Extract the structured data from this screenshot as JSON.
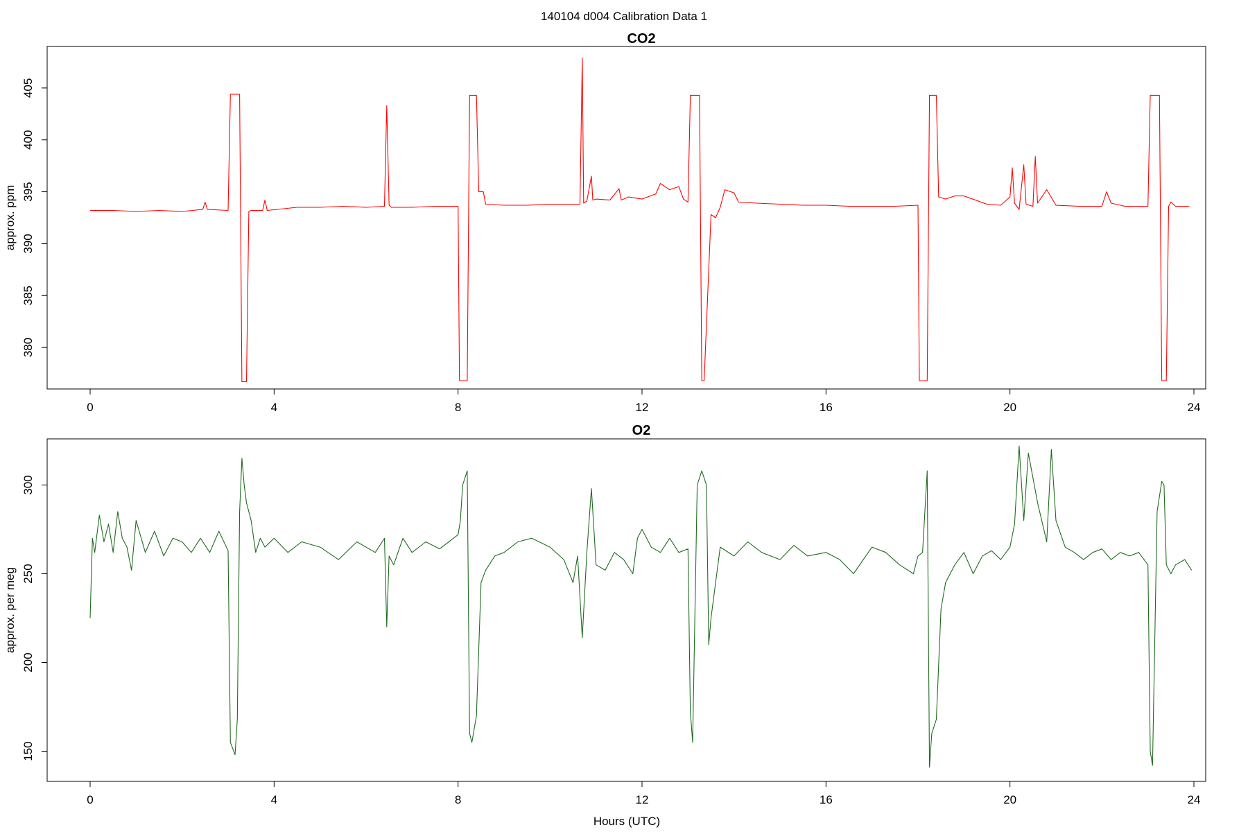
{
  "figure_title": "140104   d004   Calibration Data 1",
  "chart_data": [
    {
      "type": "line",
      "title": "CO2",
      "xlabel": "",
      "ylabel": "approx. ppm",
      "xlim": [
        0,
        24
      ],
      "ylim": [
        376,
        409
      ],
      "xticks": [
        0,
        4,
        8,
        12,
        16,
        20,
        24
      ],
      "yticks": [
        380,
        385,
        390,
        395,
        400,
        405
      ],
      "color": "#ff0000",
      "series": [
        {
          "x": [
            0,
            0.5,
            1.0,
            1.5,
            2.0,
            2.45,
            2.5,
            2.55,
            3.0,
            3.05,
            3.1,
            3.25,
            3.3,
            3.4,
            3.45,
            3.5,
            3.75,
            3.8,
            3.85,
            4.5,
            5.0,
            5.5,
            6.0,
            6.4,
            6.45,
            6.5,
            6.55,
            7.0,
            7.5,
            8.0,
            8.03,
            8.05,
            8.2,
            8.25,
            8.4,
            8.45,
            8.55,
            8.6,
            9.0,
            9.5,
            10.0,
            10.5,
            10.65,
            10.7,
            10.73,
            10.8,
            10.9,
            10.93,
            11.0,
            11.3,
            11.5,
            11.55,
            11.7,
            12.0,
            12.3,
            12.4,
            12.6,
            12.8,
            12.9,
            13.0,
            13.05,
            13.1,
            13.25,
            13.3,
            13.35,
            13.5,
            13.6,
            13.7,
            13.8,
            14.0,
            14.1,
            14.5,
            15.0,
            15.5,
            16.0,
            16.5,
            17.0,
            17.5,
            18.0,
            18.03,
            18.05,
            18.2,
            18.25,
            18.4,
            18.45,
            18.6,
            18.8,
            19.0,
            19.5,
            19.8,
            20.0,
            20.05,
            20.1,
            20.2,
            20.3,
            20.35,
            20.5,
            20.55,
            20.6,
            20.8,
            21.0,
            21.5,
            22.0,
            22.1,
            22.2,
            22.5,
            23.0,
            23.05,
            23.1,
            23.25,
            23.3,
            23.4,
            23.45,
            23.5,
            23.6,
            23.9
          ],
          "y": [
            393.2,
            393.2,
            393.1,
            393.2,
            393.1,
            393.3,
            394.0,
            393.3,
            393.2,
            404.4,
            404.4,
            404.4,
            376.7,
            376.7,
            393.1,
            393.2,
            393.2,
            394.2,
            393.2,
            393.5,
            393.5,
            393.6,
            393.5,
            393.6,
            403.3,
            393.7,
            393.5,
            393.5,
            393.6,
            393.6,
            376.8,
            376.8,
            376.8,
            404.3,
            404.3,
            395.0,
            395.0,
            393.8,
            393.7,
            393.7,
            393.8,
            393.8,
            393.8,
            407.9,
            393.9,
            394.1,
            396.5,
            394.2,
            394.3,
            394.2,
            395.3,
            394.2,
            394.5,
            394.3,
            394.8,
            395.8,
            395.2,
            395.5,
            394.3,
            394.0,
            404.3,
            404.3,
            404.3,
            376.8,
            376.8,
            392.8,
            392.5,
            393.5,
            395.2,
            394.9,
            394.0,
            393.9,
            393.8,
            393.7,
            393.7,
            393.6,
            393.6,
            393.6,
            393.7,
            376.8,
            376.8,
            376.8,
            404.3,
            404.3,
            394.5,
            394.3,
            394.6,
            394.6,
            393.8,
            393.7,
            394.5,
            397.3,
            393.9,
            393.3,
            397.6,
            393.8,
            393.6,
            398.4,
            393.9,
            395.2,
            393.7,
            393.6,
            393.6,
            395.0,
            393.9,
            393.6,
            393.6,
            404.3,
            404.3,
            404.3,
            376.8,
            376.8,
            393.6,
            394.0,
            393.6,
            393.6
          ]
        }
      ]
    },
    {
      "type": "line",
      "title": "O2",
      "xlabel": "Hours (UTC)",
      "ylabel": "approx. per meg",
      "xlim": [
        0,
        24
      ],
      "ylim": [
        133,
        326
      ],
      "xticks": [
        0,
        4,
        8,
        12,
        16,
        20,
        24
      ],
      "yticks": [
        150,
        200,
        250,
        300
      ],
      "color": "#1e6b1e",
      "series": [
        {
          "x": [
            0,
            0.05,
            0.1,
            0.2,
            0.3,
            0.4,
            0.5,
            0.6,
            0.7,
            0.8,
            0.9,
            1.0,
            1.2,
            1.4,
            1.6,
            1.8,
            2.0,
            2.2,
            2.4,
            2.6,
            2.8,
            3.0,
            3.05,
            3.15,
            3.2,
            3.25,
            3.3,
            3.35,
            3.4,
            3.5,
            3.6,
            3.7,
            3.8,
            4.0,
            4.3,
            4.6,
            5.0,
            5.4,
            5.8,
            6.2,
            6.4,
            6.45,
            6.5,
            6.6,
            6.8,
            7.0,
            7.3,
            7.6,
            8.0,
            8.05,
            8.1,
            8.2,
            8.25,
            8.3,
            8.4,
            8.5,
            8.6,
            8.8,
            9.0,
            9.3,
            9.6,
            10.0,
            10.3,
            10.5,
            10.6,
            10.7,
            10.8,
            10.9,
            11.0,
            11.2,
            11.4,
            11.6,
            11.8,
            11.9,
            12.0,
            12.2,
            12.4,
            12.6,
            12.8,
            13.0,
            13.05,
            13.1,
            13.2,
            13.3,
            13.4,
            13.45,
            13.5,
            13.6,
            13.7,
            14.0,
            14.3,
            14.6,
            15.0,
            15.3,
            15.6,
            16.0,
            16.3,
            16.6,
            17.0,
            17.3,
            17.6,
            17.9,
            18.0,
            18.1,
            18.2,
            18.25,
            18.3,
            18.4,
            18.5,
            18.6,
            18.8,
            19.0,
            19.2,
            19.4,
            19.6,
            19.8,
            20.0,
            20.1,
            20.2,
            20.3,
            20.4,
            20.6,
            20.8,
            20.9,
            21.0,
            21.2,
            21.4,
            21.6,
            21.8,
            22.0,
            22.2,
            22.4,
            22.6,
            22.8,
            23.0,
            23.05,
            23.1,
            23.2,
            23.3,
            23.35,
            23.4,
            23.5,
            23.6,
            23.8,
            23.95
          ],
          "y": [
            225,
            270,
            262,
            283,
            268,
            278,
            262,
            285,
            270,
            265,
            252,
            280,
            262,
            274,
            260,
            270,
            268,
            262,
            270,
            262,
            274,
            263,
            155,
            148,
            168,
            285,
            315,
            300,
            290,
            280,
            262,
            270,
            265,
            270,
            262,
            268,
            265,
            258,
            268,
            262,
            270,
            220,
            260,
            255,
            270,
            262,
            268,
            264,
            272,
            280,
            300,
            308,
            160,
            155,
            170,
            245,
            252,
            260,
            262,
            268,
            270,
            265,
            258,
            245,
            260,
            214,
            262,
            298,
            255,
            252,
            262,
            258,
            250,
            270,
            275,
            265,
            262,
            270,
            262,
            264,
            172,
            155,
            300,
            308,
            300,
            210,
            225,
            245,
            265,
            260,
            268,
            262,
            258,
            266,
            260,
            262,
            258,
            250,
            265,
            262,
            255,
            250,
            260,
            262,
            308,
            141,
            160,
            168,
            230,
            245,
            255,
            262,
            250,
            260,
            263,
            258,
            265,
            278,
            322,
            280,
            318,
            290,
            268,
            320,
            280,
            265,
            262,
            258,
            262,
            264,
            258,
            262,
            260,
            262,
            255,
            150,
            142,
            285,
            302,
            300,
            255,
            250,
            255,
            258,
            252
          ]
        }
      ]
    }
  ]
}
